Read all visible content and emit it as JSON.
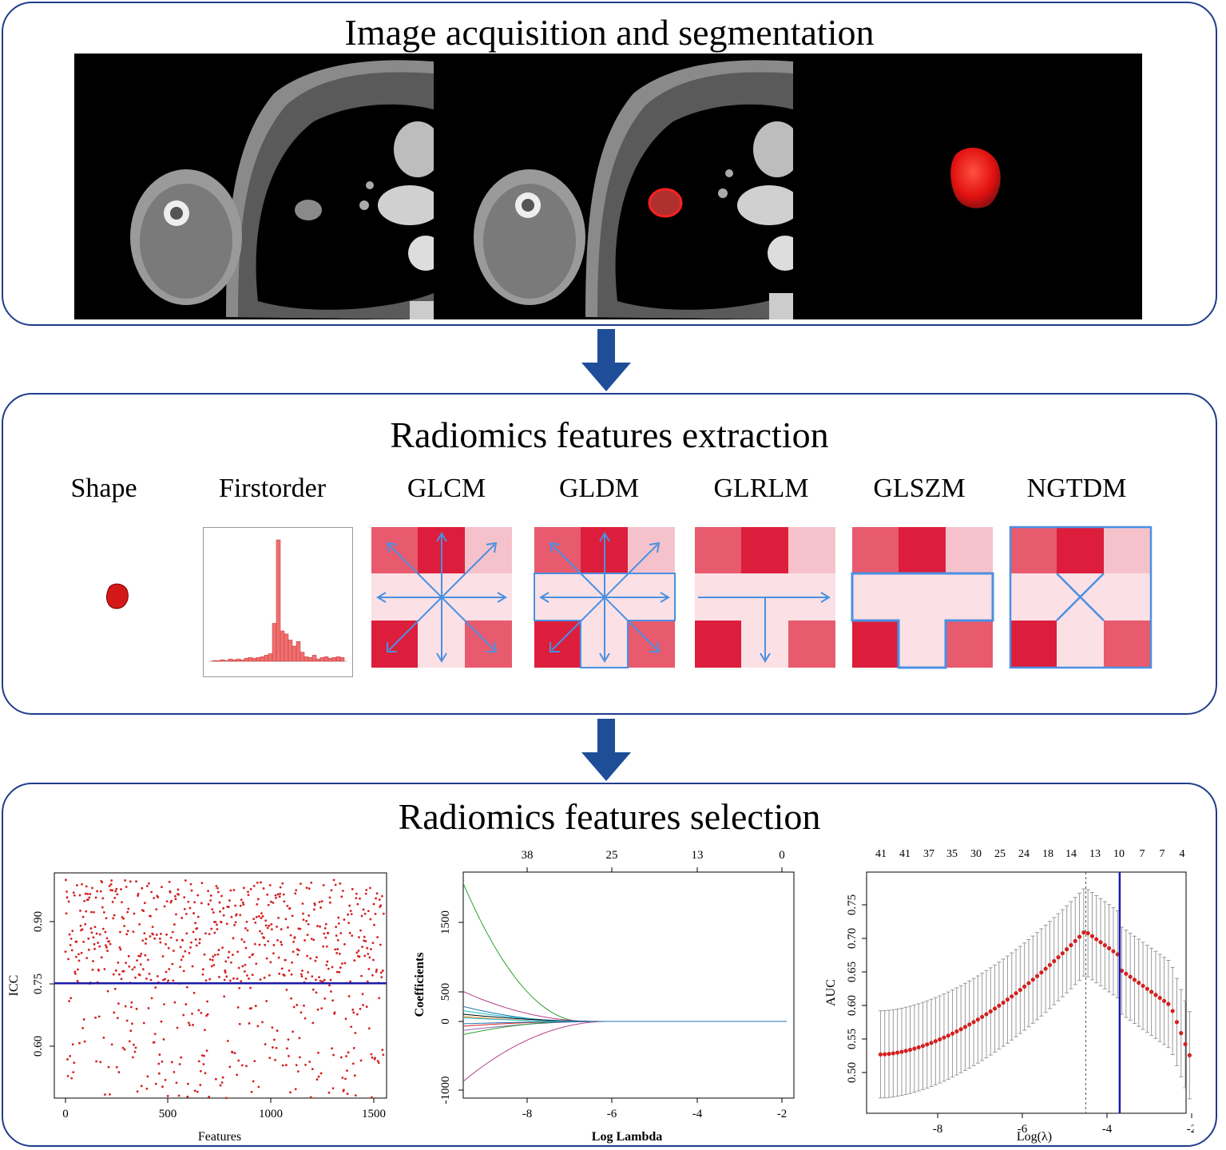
{
  "panels": {
    "acquisition_title": "Image acquisition and segmentation",
    "extraction_title": "Radiomics features extraction",
    "selection_title": "Radiomics features selection"
  },
  "colors": {
    "panel_border": "#1f3d8a",
    "arrow": "#1f4e99",
    "matrix_dark": "#dc1e3c",
    "matrix_mid": "#e85a6e",
    "matrix_light": "#f5c2cb",
    "matrix_pale": "#fbe0e5",
    "matrix_arrow": "#4a90e2",
    "plot_point": "#d42020",
    "threshold_line": "#1a1aa8"
  },
  "feature_types": [
    "Shape",
    "Firstorder",
    "GLCM",
    "GLDM",
    "GLRLM",
    "GLSZM",
    "NGTDM"
  ],
  "icc_plot": {
    "ylabel": "ICC",
    "xlabel": "Features",
    "xticks": [
      "0",
      "500",
      "1000",
      "1500"
    ],
    "yticks": [
      "0.60",
      "0.75",
      "0.90"
    ],
    "threshold": 0.75
  },
  "lasso_coef_plot": {
    "ylabel": "Coefficients",
    "xlabel": "Log Lambda",
    "xticks": [
      "-8",
      "-6",
      "-4",
      "-2"
    ],
    "yticks": [
      "-1000",
      "0",
      "500",
      "1500"
    ],
    "top_ticks": [
      "38",
      "25",
      "13",
      "0"
    ]
  },
  "auc_plot": {
    "ylabel": "AUC",
    "xlabel": "Log(λ)",
    "xticks": [
      "-8",
      "-6",
      "-4",
      "-2"
    ],
    "yticks": [
      "0.50",
      "0.55",
      "0.60",
      "0.65",
      "0.70",
      "0.75"
    ],
    "top_ticks": [
      "41",
      "41",
      "37",
      "35",
      "30",
      "25",
      "24",
      "18",
      "14",
      "13",
      "10",
      "7",
      "7",
      "4"
    ],
    "lambda_min": -4.5,
    "lambda_1se": -3.7
  }
}
